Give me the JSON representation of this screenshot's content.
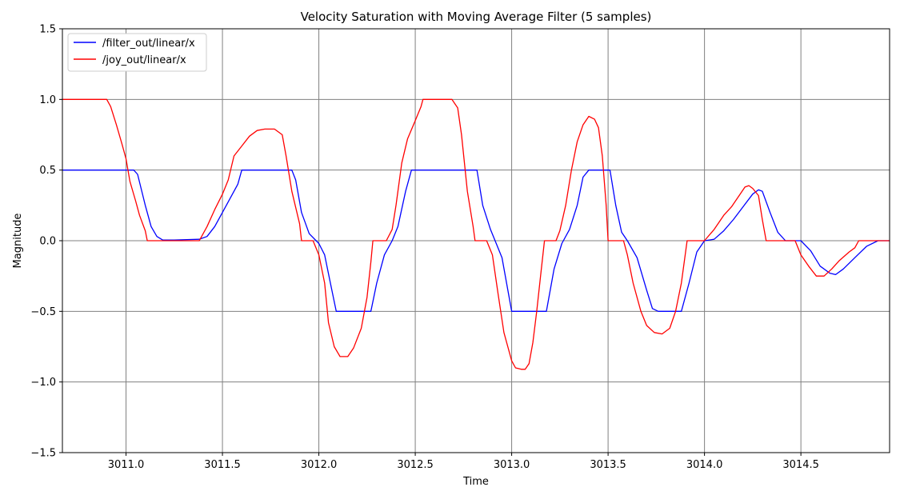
{
  "chart_data": {
    "type": "line",
    "title": "Velocity Saturation with Moving Average Filter (5 samples)",
    "xlabel": "Time",
    "ylabel": "Magnitude",
    "xlim": [
      3010.67,
      3014.96
    ],
    "ylim": [
      -1.5,
      1.5
    ],
    "grid": true,
    "legend_position": "top-left",
    "x_ticks": [
      3011.0,
      3011.5,
      3012.0,
      3012.5,
      3013.0,
      3013.5,
      3014.0,
      3014.5
    ],
    "x_tick_labels": [
      "3011.0",
      "3011.5",
      "3012.0",
      "3012.5",
      "3013.0",
      "3013.5",
      "3014.0",
      "3014.5"
    ],
    "y_ticks": [
      1.5,
      1.0,
      0.5,
      0.0,
      -0.5,
      -1.0,
      -1.5
    ],
    "y_tick_labels": [
      "1.5",
      "1.0",
      "0.5",
      "0.0",
      "−0.5",
      "−1.0",
      "−1.5"
    ],
    "series": [
      {
        "name": "/filter_out/linear/x",
        "color": "#0000ff",
        "points": [
          [
            3010.67,
            0.5
          ],
          [
            3011.04,
            0.5
          ],
          [
            3011.06,
            0.47
          ],
          [
            3011.1,
            0.25
          ],
          [
            3011.13,
            0.1
          ],
          [
            3011.16,
            0.03
          ],
          [
            3011.19,
            0.005
          ],
          [
            3011.25,
            0.005
          ],
          [
            3011.38,
            0.01
          ],
          [
            3011.42,
            0.03
          ],
          [
            3011.46,
            0.1
          ],
          [
            3011.52,
            0.25
          ],
          [
            3011.58,
            0.4
          ],
          [
            3011.6,
            0.5
          ],
          [
            3011.86,
            0.5
          ],
          [
            3011.88,
            0.43
          ],
          [
            3011.91,
            0.2
          ],
          [
            3011.95,
            0.05
          ],
          [
            3012.0,
            -0.02
          ],
          [
            3012.03,
            -0.1
          ],
          [
            3012.06,
            -0.3
          ],
          [
            3012.09,
            -0.5
          ],
          [
            3012.27,
            -0.5
          ],
          [
            3012.3,
            -0.3
          ],
          [
            3012.34,
            -0.1
          ],
          [
            3012.38,
            0.0
          ],
          [
            3012.41,
            0.1
          ],
          [
            3012.45,
            0.35
          ],
          [
            3012.48,
            0.5
          ],
          [
            3012.82,
            0.5
          ],
          [
            3012.85,
            0.25
          ],
          [
            3012.89,
            0.08
          ],
          [
            3012.92,
            -0.02
          ],
          [
            3012.95,
            -0.12
          ],
          [
            3012.98,
            -0.35
          ],
          [
            3013.0,
            -0.5
          ],
          [
            3013.18,
            -0.5
          ],
          [
            3013.22,
            -0.2
          ],
          [
            3013.26,
            -0.02
          ],
          [
            3013.3,
            0.08
          ],
          [
            3013.34,
            0.25
          ],
          [
            3013.37,
            0.45
          ],
          [
            3013.4,
            0.5
          ],
          [
            3013.51,
            0.5
          ],
          [
            3013.54,
            0.25
          ],
          [
            3013.57,
            0.06
          ],
          [
            3013.6,
            0.0
          ],
          [
            3013.65,
            -0.12
          ],
          [
            3013.7,
            -0.35
          ],
          [
            3013.73,
            -0.48
          ],
          [
            3013.76,
            -0.5
          ],
          [
            3013.88,
            -0.5
          ],
          [
            3013.92,
            -0.3
          ],
          [
            3013.96,
            -0.08
          ],
          [
            3014.0,
            0.0
          ],
          [
            3014.05,
            0.01
          ],
          [
            3014.1,
            0.07
          ],
          [
            3014.15,
            0.15
          ],
          [
            3014.2,
            0.24
          ],
          [
            3014.25,
            0.33
          ],
          [
            3014.28,
            0.36
          ],
          [
            3014.3,
            0.35
          ],
          [
            3014.34,
            0.2
          ],
          [
            3014.38,
            0.06
          ],
          [
            3014.42,
            0.0
          ],
          [
            3014.5,
            0.0
          ],
          [
            3014.55,
            -0.07
          ],
          [
            3014.6,
            -0.18
          ],
          [
            3014.65,
            -0.23
          ],
          [
            3014.68,
            -0.24
          ],
          [
            3014.72,
            -0.2
          ],
          [
            3014.78,
            -0.12
          ],
          [
            3014.84,
            -0.04
          ],
          [
            3014.9,
            0.0
          ],
          [
            3014.96,
            0.0
          ]
        ]
      },
      {
        "name": "/joy_out/linear/x",
        "color": "#ff0000",
        "points": [
          [
            3010.67,
            1.0
          ],
          [
            3010.9,
            1.0
          ],
          [
            3010.92,
            0.95
          ],
          [
            3010.95,
            0.82
          ],
          [
            3010.98,
            0.68
          ],
          [
            3011.0,
            0.58
          ],
          [
            3011.02,
            0.42
          ],
          [
            3011.05,
            0.28
          ],
          [
            3011.07,
            0.18
          ],
          [
            3011.1,
            0.07
          ],
          [
            3011.11,
            0.0
          ],
          [
            3011.38,
            0.0
          ],
          [
            3011.42,
            0.1
          ],
          [
            3011.46,
            0.22
          ],
          [
            3011.5,
            0.33
          ],
          [
            3011.53,
            0.43
          ],
          [
            3011.56,
            0.6
          ],
          [
            3011.6,
            0.67
          ],
          [
            3011.64,
            0.74
          ],
          [
            3011.68,
            0.78
          ],
          [
            3011.72,
            0.79
          ],
          [
            3011.77,
            0.79
          ],
          [
            3011.81,
            0.75
          ],
          [
            3011.83,
            0.6
          ],
          [
            3011.86,
            0.35
          ],
          [
            3011.9,
            0.12
          ],
          [
            3011.91,
            0.0
          ],
          [
            3011.97,
            0.0
          ],
          [
            3012.0,
            -0.1
          ],
          [
            3012.03,
            -0.3
          ],
          [
            3012.05,
            -0.58
          ],
          [
            3012.08,
            -0.75
          ],
          [
            3012.11,
            -0.82
          ],
          [
            3012.15,
            -0.82
          ],
          [
            3012.18,
            -0.76
          ],
          [
            3012.22,
            -0.62
          ],
          [
            3012.25,
            -0.4
          ],
          [
            3012.27,
            -0.15
          ],
          [
            3012.28,
            0.0
          ],
          [
            3012.35,
            0.0
          ],
          [
            3012.38,
            0.08
          ],
          [
            3012.4,
            0.25
          ],
          [
            3012.43,
            0.55
          ],
          [
            3012.46,
            0.72
          ],
          [
            3012.5,
            0.85
          ],
          [
            3012.53,
            0.95
          ],
          [
            3012.54,
            1.0
          ],
          [
            3012.69,
            1.0
          ],
          [
            3012.72,
            0.94
          ],
          [
            3012.74,
            0.75
          ],
          [
            3012.77,
            0.35
          ],
          [
            3012.8,
            0.1
          ],
          [
            3012.81,
            0.0
          ],
          [
            3012.87,
            0.0
          ],
          [
            3012.9,
            -0.1
          ],
          [
            3012.93,
            -0.38
          ],
          [
            3012.96,
            -0.65
          ],
          [
            3013.0,
            -0.85
          ],
          [
            3013.02,
            -0.9
          ],
          [
            3013.05,
            -0.91
          ],
          [
            3013.07,
            -0.91
          ],
          [
            3013.09,
            -0.87
          ],
          [
            3013.11,
            -0.72
          ],
          [
            3013.13,
            -0.5
          ],
          [
            3013.15,
            -0.25
          ],
          [
            3013.17,
            0.0
          ],
          [
            3013.23,
            0.0
          ],
          [
            3013.25,
            0.07
          ],
          [
            3013.28,
            0.25
          ],
          [
            3013.31,
            0.5
          ],
          [
            3013.34,
            0.7
          ],
          [
            3013.37,
            0.82
          ],
          [
            3013.4,
            0.88
          ],
          [
            3013.43,
            0.86
          ],
          [
            3013.45,
            0.8
          ],
          [
            3013.47,
            0.6
          ],
          [
            3013.49,
            0.25
          ],
          [
            3013.5,
            0.0
          ],
          [
            3013.58,
            0.0
          ],
          [
            3013.6,
            -0.1
          ],
          [
            3013.63,
            -0.3
          ],
          [
            3013.67,
            -0.5
          ],
          [
            3013.7,
            -0.6
          ],
          [
            3013.74,
            -0.65
          ],
          [
            3013.78,
            -0.66
          ],
          [
            3013.82,
            -0.62
          ],
          [
            3013.85,
            -0.5
          ],
          [
            3013.88,
            -0.3
          ],
          [
            3013.9,
            -0.1
          ],
          [
            3013.91,
            0.0
          ],
          [
            3014.0,
            0.0
          ],
          [
            3014.05,
            0.08
          ],
          [
            3014.1,
            0.18
          ],
          [
            3014.14,
            0.24
          ],
          [
            3014.18,
            0.32
          ],
          [
            3014.21,
            0.38
          ],
          [
            3014.23,
            0.39
          ],
          [
            3014.25,
            0.37
          ],
          [
            3014.28,
            0.32
          ],
          [
            3014.3,
            0.15
          ],
          [
            3014.32,
            0.0
          ],
          [
            3014.47,
            0.0
          ],
          [
            3014.5,
            -0.1
          ],
          [
            3014.54,
            -0.18
          ],
          [
            3014.58,
            -0.25
          ],
          [
            3014.62,
            -0.25
          ],
          [
            3014.66,
            -0.2
          ],
          [
            3014.7,
            -0.14
          ],
          [
            3014.75,
            -0.08
          ],
          [
            3014.78,
            -0.05
          ],
          [
            3014.8,
            0.0
          ],
          [
            3014.96,
            0.0
          ]
        ]
      }
    ]
  }
}
